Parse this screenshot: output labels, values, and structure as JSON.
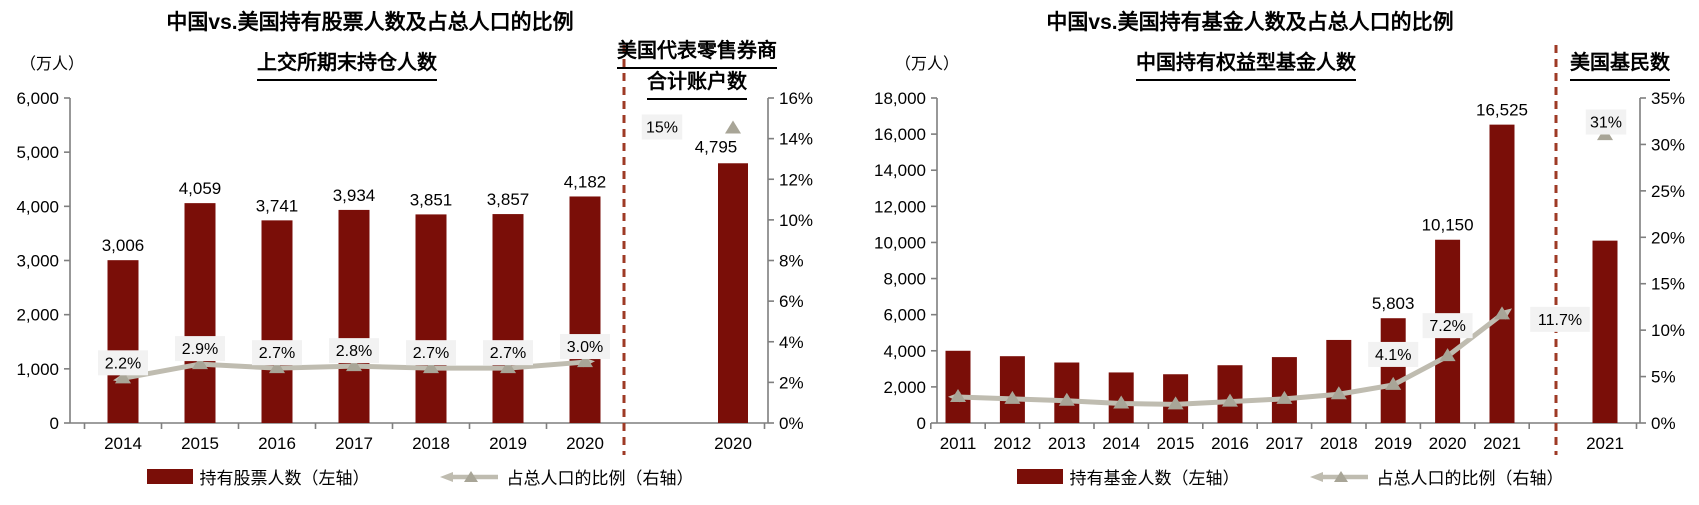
{
  "figure": {
    "description_note": "Two dual-axis combo charts comparing China vs US holders of stocks / funds and their share of total population"
  },
  "colors": {
    "bar": "#7A0E08",
    "line": "#BFBCB0",
    "marker": "#A8A597",
    "divider": "#9E3A25",
    "label_bg": "#F2F2F2",
    "axis": "#7F7F7F",
    "text": "#000000"
  },
  "charts": [
    {
      "title": "中国vs.美国持有股票人数及占总人口的比例",
      "unit_label": "（万人）",
      "china_header": "上交所期末持仓人数",
      "us_header_lines": [
        "美国代表零售券商",
        "合计账户数"
      ],
      "legend": [
        {
          "swatch": "bar",
          "label": "持有股票人数（左轴）"
        },
        {
          "swatch": "line-triangle",
          "label": "占总人口的比例（右轴）"
        }
      ],
      "chart_data": {
        "type": "bar+line dual-axis",
        "left_axis": {
          "unit": "万人",
          "min": 0,
          "max": 6000,
          "tick_step": 1000,
          "tick_labels": [
            "0",
            "1,000",
            "2,000",
            "3,000",
            "4,000",
            "5,000",
            "6,000"
          ]
        },
        "right_axis": {
          "unit": "%",
          "min": 0,
          "max": 16,
          "tick_step": 2,
          "tick_labels": [
            "0%",
            "2%",
            "4%",
            "6%",
            "8%",
            "10%",
            "12%",
            "14%",
            "16%"
          ]
        },
        "china": {
          "categories": [
            "2014",
            "2015",
            "2016",
            "2017",
            "2018",
            "2019",
            "2020"
          ],
          "bar_values": [
            3006,
            4059,
            3741,
            3934,
            3851,
            3857,
            4182
          ],
          "bar_labels": [
            "3,006",
            "4,059",
            "3,741",
            "3,934",
            "3,851",
            "3,857",
            "4,182"
          ],
          "line_pct_values": [
            2.2,
            2.9,
            2.7,
            2.8,
            2.7,
            2.7,
            3.0
          ],
          "line_pct_labels": [
            "2.2%",
            "2.9%",
            "2.7%",
            "2.8%",
            "2.7%",
            "2.7%",
            "3.0%"
          ]
        },
        "us": {
          "category": "2020",
          "bar_value": 4795,
          "bar_label": "4,795",
          "marker_pct_value": 14.5,
          "marker_pct_label": "15%"
        }
      }
    },
    {
      "title": "中国vs.美国持有基金人数及占总人口的比例",
      "unit_label": "（万人）",
      "china_header": "中国持有权益型基金人数",
      "us_header_lines": [
        "美国基民数"
      ],
      "legend": [
        {
          "swatch": "bar",
          "label": "持有基金人数（左轴）"
        },
        {
          "swatch": "line-triangle",
          "label": "占总人口的比例（右轴）"
        }
      ],
      "chart_data": {
        "type": "bar+line dual-axis",
        "left_axis": {
          "unit": "万人",
          "min": 0,
          "max": 18000,
          "tick_step": 2000,
          "tick_labels": [
            "0",
            "2,000",
            "4,000",
            "6,000",
            "8,000",
            "10,000",
            "12,000",
            "14,000",
            "16,000",
            "18,000"
          ]
        },
        "right_axis": {
          "unit": "%",
          "min": 0,
          "max": 35,
          "tick_step": 5,
          "tick_labels": [
            "0%",
            "5%",
            "10%",
            "15%",
            "20%",
            "25%",
            "30%",
            "35%"
          ]
        },
        "china": {
          "categories": [
            "2011",
            "2012",
            "2013",
            "2014",
            "2015",
            "2016",
            "2017",
            "2018",
            "2019",
            "2020",
            "2021"
          ],
          "bar_values": [
            4000,
            3700,
            3350,
            2800,
            2700,
            3200,
            3650,
            4600,
            5803,
            10150,
            16525
          ],
          "bar_labels": [
            null,
            null,
            null,
            null,
            null,
            null,
            null,
            null,
            "5,803",
            "10,150",
            "16,525"
          ],
          "line_pct_values": [
            2.8,
            2.6,
            2.4,
            2.1,
            2.0,
            2.3,
            2.6,
            3.1,
            4.1,
            7.2,
            11.7
          ],
          "line_pct_labels": [
            null,
            null,
            null,
            null,
            null,
            null,
            null,
            null,
            "4.1%",
            "7.2%",
            "11.7%"
          ]
        },
        "us": {
          "category": "2021",
          "bar_value": 10100,
          "bar_label": null,
          "marker_pct_value": 31,
          "marker_pct_label": "31%"
        }
      }
    }
  ]
}
